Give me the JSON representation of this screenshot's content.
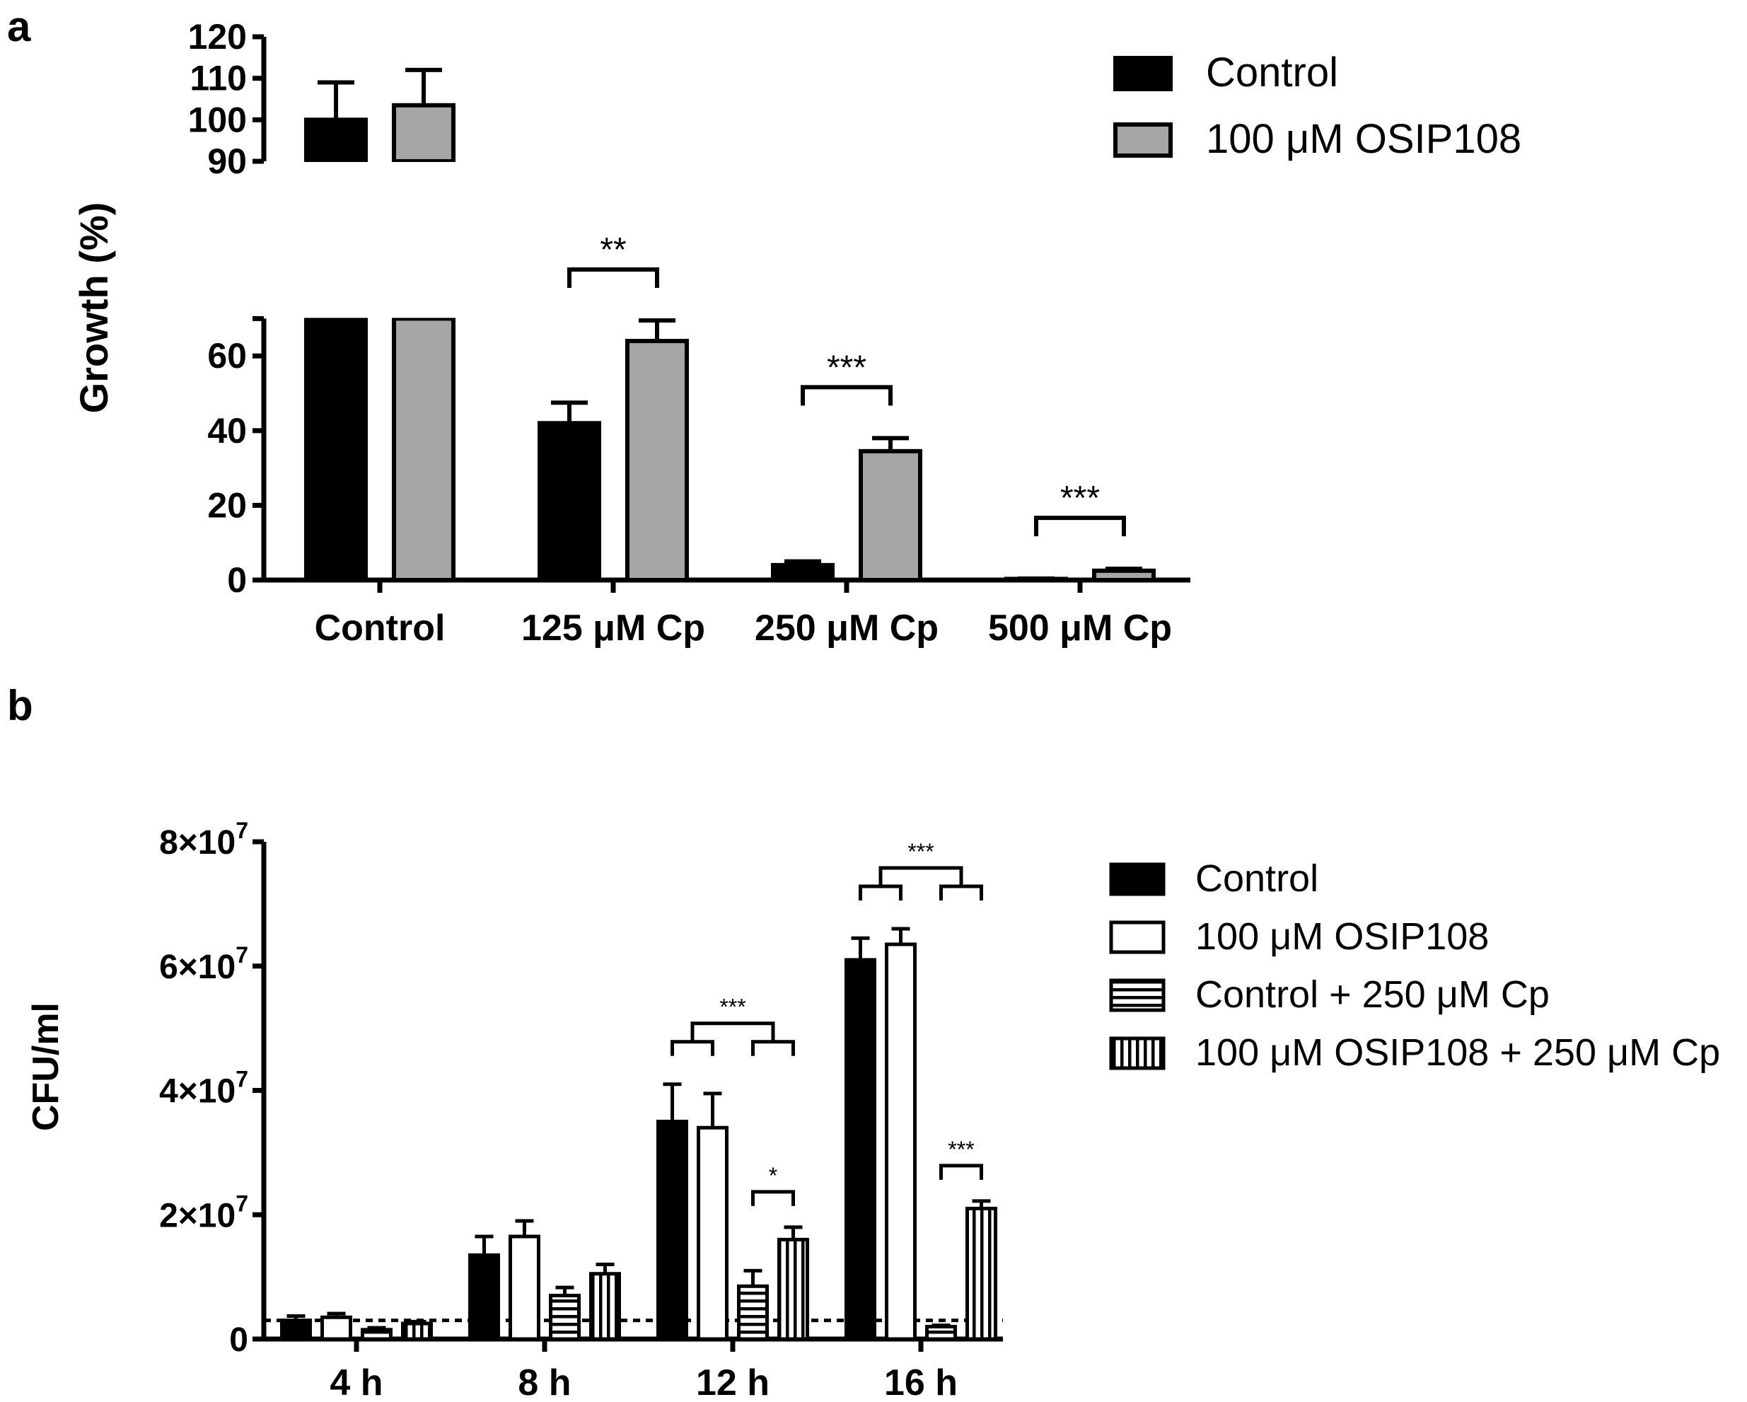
{
  "panels": {
    "a": "a",
    "b": "b"
  },
  "chart_data": [
    {
      "type": "bar",
      "panel": "a",
      "ylabel": "Growth (%)",
      "xlabel": "",
      "categories": [
        "Control",
        "125 μM Cp",
        "250 μM Cp",
        "500 μM Cp"
      ],
      "series": [
        {
          "name": "Control",
          "color": "#000000",
          "values": [
            100,
            42,
            4,
            0.3
          ],
          "errors": [
            9,
            5.5,
            1,
            0.1
          ]
        },
        {
          "name": "100 μM OSIP108",
          "color": "#a6a6a6",
          "values": [
            103.5,
            64,
            34.5,
            2.5
          ],
          "errors": [
            8.5,
            5.5,
            3.5,
            0.5
          ]
        }
      ],
      "axis_break": {
        "lower_range": [
          0,
          70
        ],
        "upper_range": [
          90,
          120
        ]
      },
      "yticks_lower": [
        "0",
        "20",
        "40",
        "60"
      ],
      "yticks_upper": [
        "90",
        "100",
        "110",
        "120"
      ],
      "significance": [
        {
          "category": 1,
          "label": "**"
        },
        {
          "category": 2,
          "label": "***"
        },
        {
          "category": 3,
          "label": "***"
        }
      ]
    },
    {
      "type": "bar",
      "panel": "b",
      "ylabel": "CFU/ml",
      "xlabel": "",
      "categories": [
        "4 h",
        "8 h",
        "12 h",
        "16 h"
      ],
      "ylim": [
        0,
        80000000
      ],
      "yticks": [
        {
          "value": 0,
          "base": "0",
          "exp": ""
        },
        {
          "value": 20000000,
          "base": "2×10",
          "exp": "7"
        },
        {
          "value": 40000000,
          "base": "4×10",
          "exp": "7"
        },
        {
          "value": 60000000,
          "base": "6×10",
          "exp": "7"
        },
        {
          "value": 80000000,
          "base": "8×10",
          "exp": "7"
        }
      ],
      "series": [
        {
          "name": "Control",
          "pattern": "solid",
          "values": [
            3000000,
            13500000,
            35000000,
            61000000
          ],
          "errors": [
            700000,
            3000000,
            6000000,
            3500000
          ]
        },
        {
          "name": "100 μM OSIP108",
          "pattern": "open",
          "values": [
            3500000,
            16500000,
            34000000,
            63500000
          ],
          "errors": [
            600000,
            2500000,
            5500000,
            2500000
          ]
        },
        {
          "name": "Control + 250 μM Cp",
          "pattern": "horizontal",
          "values": [
            1500000,
            7000000,
            8500000,
            2000000
          ],
          "errors": [
            300000,
            1300000,
            2500000,
            200000
          ]
        },
        {
          "name": "100 μM OSIP108 + 250 μM Cp",
          "pattern": "vertical",
          "values": [
            2500000,
            10500000,
            16000000,
            21000000
          ],
          "errors": [
            300000,
            1500000,
            2000000,
            1200000
          ]
        }
      ],
      "detection_limit": 3000000,
      "significance": [
        {
          "category": 2,
          "type": "group",
          "label": "***"
        },
        {
          "category": 2,
          "type": "pair",
          "label": "*"
        },
        {
          "category": 3,
          "type": "group",
          "label": "***"
        },
        {
          "category": 3,
          "type": "pair",
          "label": "***"
        }
      ]
    }
  ]
}
